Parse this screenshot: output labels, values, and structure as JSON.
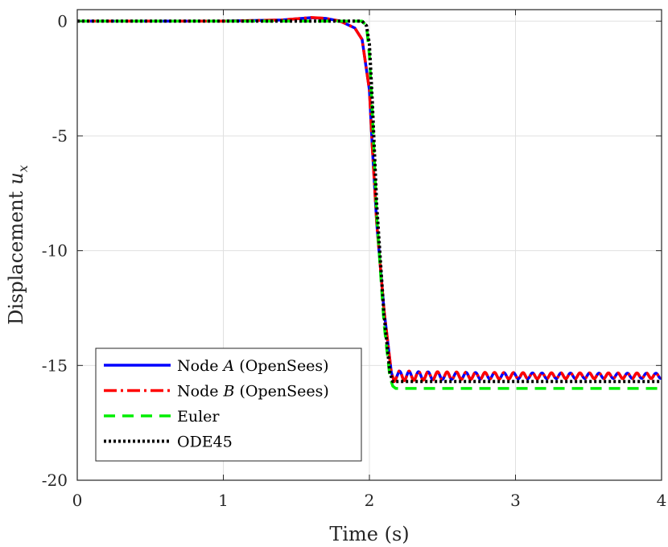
{
  "chart_data": {
    "type": "line",
    "xlabel": "Time (s)",
    "ylabel": "Displacement",
    "ylabel_symbol": "u",
    "ylabel_subscript": "x",
    "xlim": [
      0,
      4
    ],
    "ylim": [
      -20,
      0.5
    ],
    "xticks": [
      0,
      1,
      2,
      3,
      4
    ],
    "xtick_labels": [
      "0",
      "1",
      "2",
      "3",
      "4"
    ],
    "yticks": [
      0,
      -5,
      -10,
      -15,
      -20
    ],
    "ytick_labels": [
      "0",
      "-5",
      "-10",
      "-15",
      "-20"
    ],
    "grid": true,
    "legend_position": "bottom-left",
    "series": [
      {
        "name": "Node A (OpenSees)",
        "label_prefix": "Node ",
        "label_symbol": "A",
        "label_suffix": " (OpenSees)",
        "color": "#0000ff",
        "style": "solid",
        "x": [
          0,
          1.0,
          1.4,
          1.5,
          1.6,
          1.7,
          1.8,
          1.9,
          1.95,
          2.0,
          2.02,
          2.05,
          2.1,
          2.15,
          2.17,
          2.18,
          2.25,
          4.0
        ],
        "y": [
          0,
          0,
          0.05,
          0.1,
          0.15,
          0.12,
          0.0,
          -0.3,
          -0.8,
          -3.0,
          -5.5,
          -8.8,
          -12.6,
          -15.3,
          -15.7,
          -15.6,
          -15.4,
          -15.45
        ],
        "oscillation": {
          "start": 2.2,
          "end": 4.0,
          "center": -15.45,
          "amplitude": 0.2,
          "period": 0.065
        }
      },
      {
        "name": "Node B (OpenSees)",
        "label_prefix": "Node ",
        "label_symbol": "B",
        "label_suffix": " (OpenSees)",
        "color": "#ff0000",
        "style": "dashdot",
        "x": [
          0,
          1.0,
          1.4,
          1.5,
          1.6,
          1.7,
          1.8,
          1.9,
          1.95,
          2.0,
          2.02,
          2.05,
          2.1,
          2.15,
          2.17,
          2.18,
          2.25,
          4.0
        ],
        "y": [
          0,
          0,
          0.05,
          0.1,
          0.16,
          0.12,
          0.0,
          -0.3,
          -0.8,
          -3.0,
          -5.5,
          -8.8,
          -12.6,
          -15.3,
          -15.7,
          -15.6,
          -15.4,
          -15.45
        ],
        "oscillation": {
          "start": 2.2,
          "end": 4.0,
          "center": -15.45,
          "amplitude": 0.22,
          "period": 0.065
        }
      },
      {
        "name": "Euler",
        "label_prefix": "Euler",
        "label_symbol": "",
        "label_suffix": "",
        "color": "#00ee00",
        "style": "dashed",
        "x": [
          0,
          1.9,
          1.95,
          1.98,
          2.0,
          2.02,
          2.05,
          2.1,
          2.14,
          2.16,
          2.18,
          2.3,
          4.0
        ],
        "y": [
          0,
          0,
          0,
          -0.2,
          -1.5,
          -4.0,
          -8.5,
          -13.2,
          -15.5,
          -15.9,
          -16.0,
          -16.0,
          -16.0
        ]
      },
      {
        "name": "ODE45",
        "label_prefix": "ODE45",
        "label_symbol": "",
        "label_suffix": "",
        "color": "#000000",
        "style": "dotted",
        "x": [
          0,
          1.95,
          1.98,
          2.0,
          2.02,
          2.05,
          2.1,
          2.14,
          2.16,
          2.18,
          2.3,
          4.0
        ],
        "y": [
          0,
          0,
          -0.2,
          -1.0,
          -3.5,
          -8.0,
          -12.8,
          -15.3,
          -15.7,
          -15.7,
          -15.7,
          -15.7
        ]
      }
    ]
  }
}
